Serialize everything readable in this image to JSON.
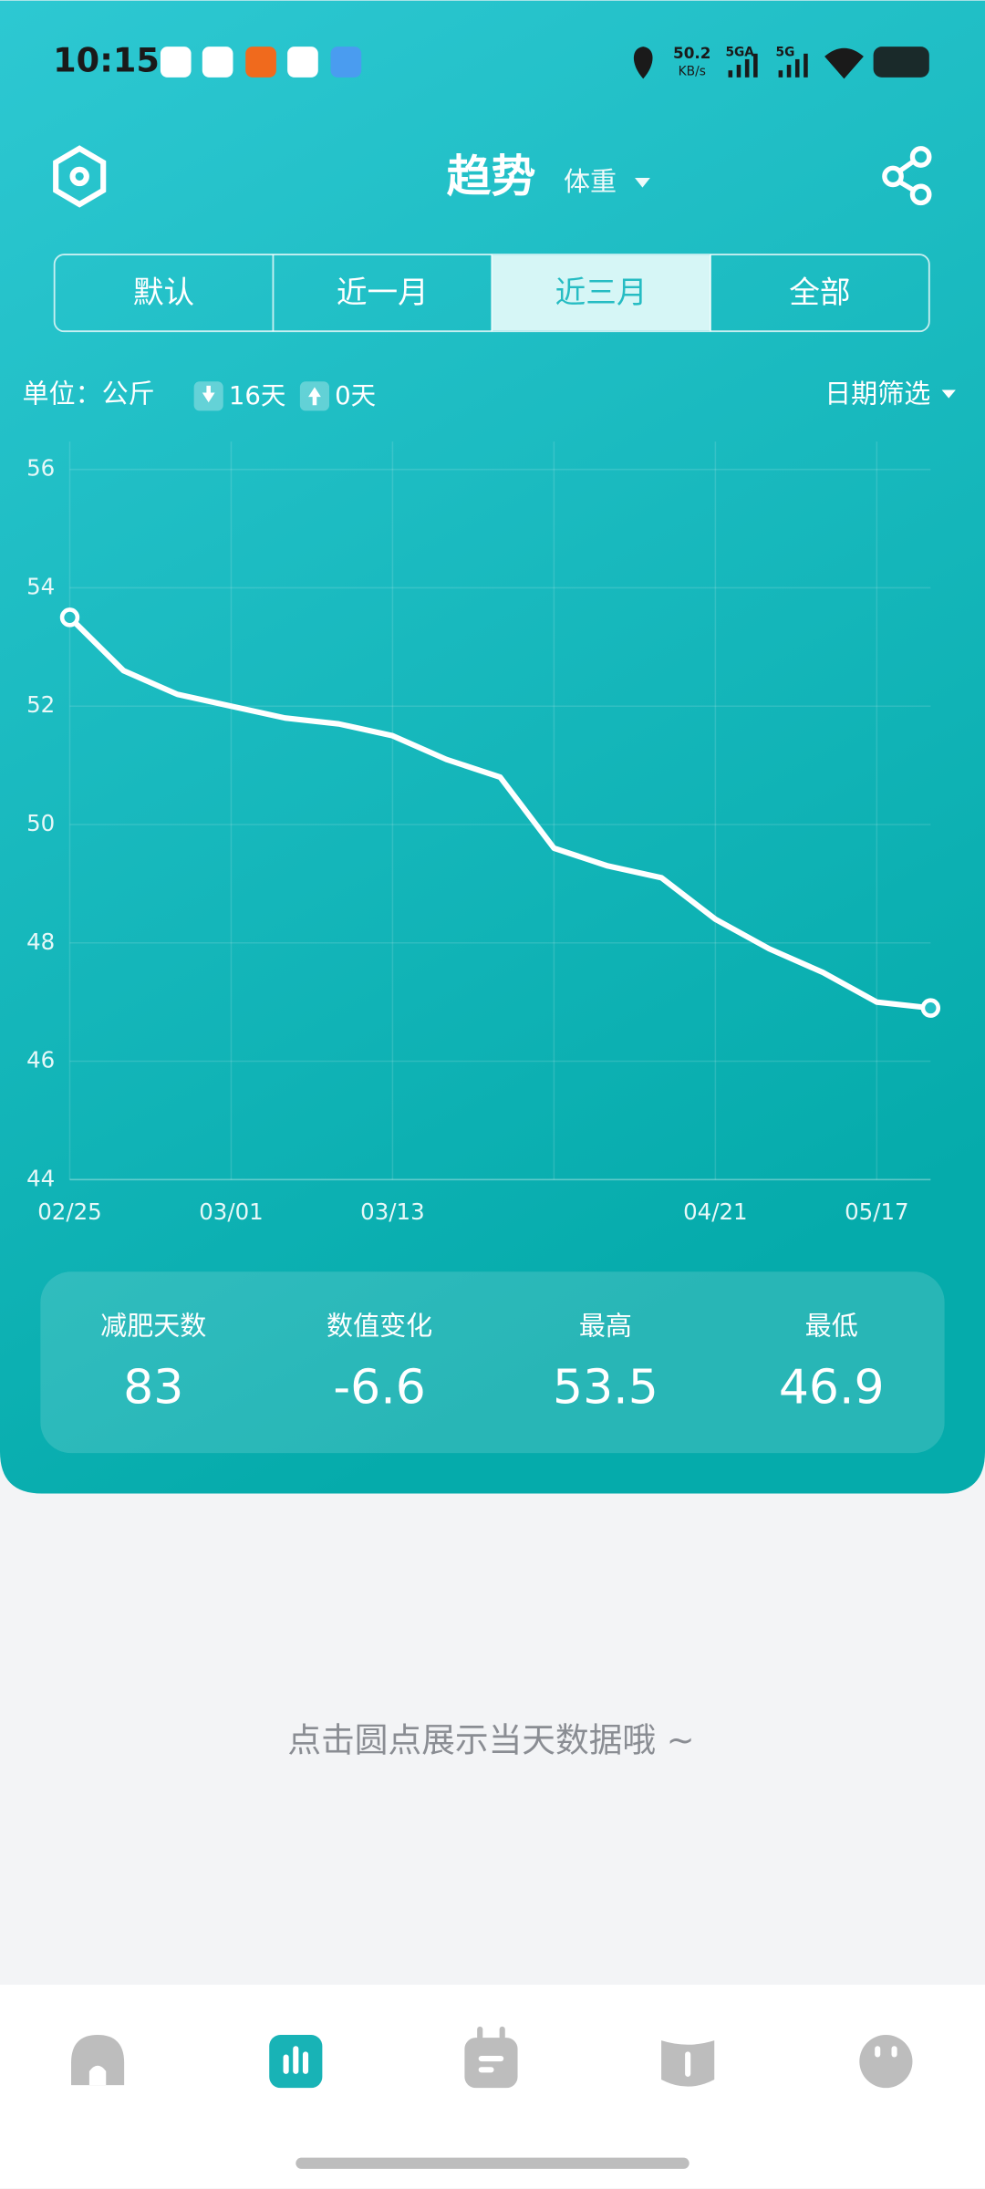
{
  "status_bar": {
    "time": "10:15",
    "net_speed": "50.2",
    "net_unit": "KB/s",
    "sim1": "5GA",
    "sim2": "5G"
  },
  "header": {
    "title": "趋势",
    "metric": "体重"
  },
  "tabs": [
    "默认",
    "近一月",
    "近三月",
    "全部"
  ],
  "active_tab": 2,
  "filter": {
    "unit": "单位：公斤",
    "down_days": "16天",
    "up_days": "0天",
    "date_filter": "日期筛选"
  },
  "chart_data": {
    "type": "line",
    "categories": [
      "02/25",
      null,
      null,
      "03/01",
      null,
      null,
      "03/13",
      null,
      null,
      null,
      null,
      null,
      "04/21",
      null,
      null,
      "05/17",
      null
    ],
    "values": [
      53.5,
      52.6,
      52.2,
      52.0,
      51.8,
      51.7,
      51.5,
      51.1,
      50.8,
      49.6,
      49.3,
      49.1,
      48.4,
      47.9,
      47.5,
      47.0,
      46.9
    ],
    "color": "#ffffff",
    "ylim": [
      44,
      56
    ],
    "yticks": [
      44,
      46,
      48,
      50,
      52,
      54,
      56
    ],
    "grid": true
  },
  "stats": [
    {
      "label": "减肥天数",
      "value": 83
    },
    {
      "label": "数值变化",
      "value": -6.6
    },
    {
      "label": "最高",
      "value": 53.5
    },
    {
      "label": "最低",
      "value": 46.9
    }
  ],
  "hint": "点击圆点展示当天数据哦 ~"
}
